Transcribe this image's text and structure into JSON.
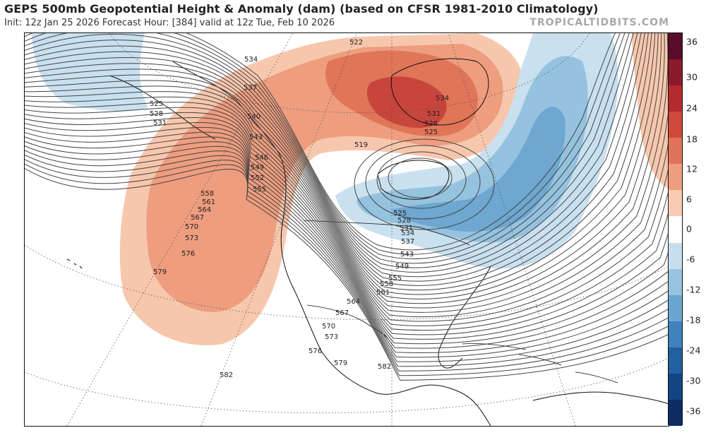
{
  "header": {
    "title": "GEPS 500mb Geopotential Height & Anomaly (dam) (based on CFSR 1981-2010 Climatology)",
    "subtitle": "Init: 12z Jan 25 2026   Forecast Hour: [384]   valid at 12z Tue, Feb 10 2026",
    "credit": "TROPICALTIDBITS.COM"
  },
  "colorbar": {
    "labels": [
      "36",
      "30",
      "24",
      "18",
      "12",
      "6",
      "0",
      "-6",
      "-12",
      "-18",
      "-24",
      "-30",
      "-36"
    ],
    "colors": [
      "#5a0a2a",
      "#8a1a2a",
      "#b42a2e",
      "#cf4a3c",
      "#e0745a",
      "#ee9e80",
      "#f8ccb4",
      "#ffffff",
      "#c6dfee",
      "#96c4e0",
      "#6aa6d0",
      "#3f82bd",
      "#22609f",
      "#134583",
      "#0c2c62"
    ]
  },
  "map": {
    "height_labels": [
      "525",
      "528",
      "531",
      "534",
      "537",
      "540",
      "543",
      "546",
      "549",
      "552",
      "555",
      "558",
      "561",
      "564",
      "567",
      "570",
      "573",
      "576",
      "579",
      "582",
      "519",
      "522",
      "525",
      "528",
      "531",
      "534",
      "525",
      "528",
      "531",
      "534",
      "537",
      "543",
      "549",
      "555",
      "558",
      "561",
      "564",
      "567",
      "570",
      "573",
      "576",
      "579",
      "582"
    ],
    "anomaly_colors": {
      "pos_light": "#f7c7ad",
      "pos_mid": "#ee9d7f",
      "pos_strong": "#e07558",
      "pos_max": "#c8453c",
      "neg_light": "#c9e0ef",
      "neg_mid": "#95c2df",
      "neg_strong": "#6ea7d0"
    }
  }
}
